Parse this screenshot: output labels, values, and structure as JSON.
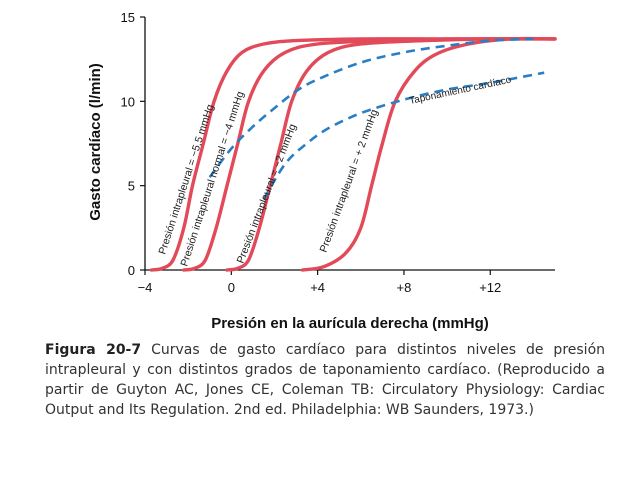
{
  "chart_data": {
    "type": "line",
    "xlabel": "Presión en la aurícula derecha (mmHg)",
    "ylabel": "Gasto cardíaco (l/min)",
    "xlim": [
      -4,
      15
    ],
    "ylim": [
      0,
      15
    ],
    "x_ticks": [
      -4,
      0,
      4,
      8,
      12
    ],
    "x_tick_labels": [
      "−4",
      "0",
      "+4",
      "+8",
      "+12"
    ],
    "y_ticks": [
      0,
      5,
      10,
      15
    ],
    "y_tick_labels": [
      "0",
      "5",
      "10",
      "15"
    ],
    "grid": false,
    "series": [
      {
        "name": "Presión intrapleural = −5,5 mmHg",
        "style": "solid",
        "color": "#e24a5a",
        "x": [
          -3.7,
          -3.2,
          -2.7,
          -2.2,
          -1.8,
          -1.3,
          -0.8,
          -0.2,
          0.5,
          1.5,
          3,
          6,
          10,
          15
        ],
        "y": [
          0,
          0.1,
          0.6,
          2.5,
          5,
          7.5,
          10,
          11.8,
          12.9,
          13.4,
          13.6,
          13.7,
          13.7,
          13.7
        ]
      },
      {
        "name": "Presión intrapleural normal = −4 mmHg",
        "style": "solid",
        "color": "#e24a5a",
        "x": [
          -2.2,
          -1.7,
          -1.2,
          -0.7,
          -0.2,
          0.3,
          0.8,
          1.5,
          2.5,
          4,
          7,
          10,
          15
        ],
        "y": [
          0,
          0.1,
          0.6,
          2.5,
          5,
          7.5,
          10,
          11.8,
          12.9,
          13.4,
          13.6,
          13.7,
          13.7
        ]
      },
      {
        "name": "Presión intrapleural = −2 mmHg",
        "style": "solid",
        "color": "#e24a5a",
        "x": [
          -0.2,
          0.3,
          0.8,
          1.3,
          1.8,
          2.3,
          2.8,
          3.5,
          4.5,
          6,
          9,
          12,
          15
        ],
        "y": [
          0,
          0.1,
          0.6,
          2.5,
          5,
          7.5,
          10,
          11.8,
          12.9,
          13.4,
          13.6,
          13.7,
          13.7
        ]
      },
      {
        "name": "Presión intrapleural = + 2 mmHg",
        "style": "solid",
        "color": "#e24a5a",
        "x": [
          3.3,
          4.3,
          5.3,
          6.0,
          6.5,
          7.0,
          7.6,
          8.5,
          9.5,
          11,
          13,
          15
        ],
        "y": [
          0,
          0.2,
          1.0,
          2.5,
          5,
          7.5,
          10,
          11.8,
          12.8,
          13.4,
          13.7,
          13.7
        ]
      },
      {
        "name": "",
        "style": "dashed",
        "color": "#2a7fc4",
        "x": [
          -1,
          0,
          1,
          2,
          3,
          4,
          6,
          8,
          10,
          12,
          14
        ],
        "y": [
          5.5,
          7.2,
          8.5,
          9.6,
          10.6,
          11.3,
          12.3,
          12.9,
          13.3,
          13.6,
          13.7
        ]
      },
      {
        "name": "",
        "style": "dashed",
        "color": "#2a7fc4",
        "x": [
          1.5,
          2.5,
          3.5,
          4.5,
          6,
          8,
          10,
          12,
          14.5
        ],
        "y": [
          4.2,
          6.3,
          7.5,
          8.4,
          9.3,
          10.1,
          10.7,
          11.1,
          11.7
        ]
      }
    ],
    "annotations": [
      "Presión intrapleural = −5,5 mmHg",
      "Presión intrapleural normal = −4 mmHg",
      "Presión intrapleural = −2 mmHg",
      "Presión intrapleural = + 2 mmHg",
      "Taponamiento cardíaco"
    ]
  },
  "caption": {
    "figure_label": "Figura 20-7",
    "text": "Curvas de gasto cardíaco para distintos niveles de presión intrapleural y con distintos grados de taponamiento cardíaco. (Reproducido a partir de Guyton AC, Jones CE, Coleman TB: Circulatory Physiology: Cardiac Output and Its Regulation. 2nd ed. Philadelphia: WB Saunders, 1973.)"
  }
}
